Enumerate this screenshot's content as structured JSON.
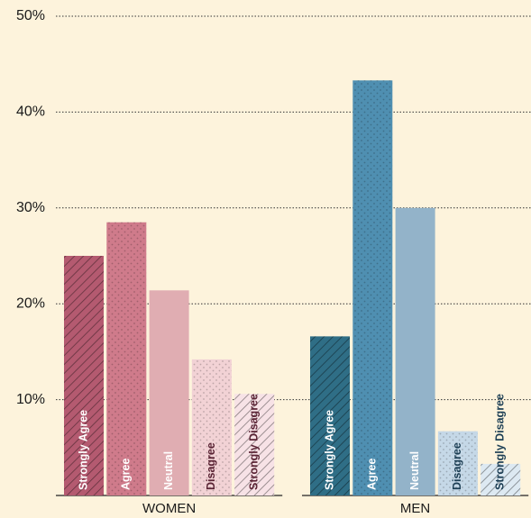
{
  "chart_data": {
    "type": "bar",
    "categories": [
      "WOMEN",
      "MEN"
    ],
    "series": [
      {
        "name": "Strongly Agree",
        "colors": [
          "#b45a70",
          "#2f6e86"
        ],
        "pattern": "hatch",
        "label_colors": [
          "#ffffff",
          "#ffffff"
        ],
        "values": [
          25.0,
          16.6
        ]
      },
      {
        "name": "Agree",
        "colors": [
          "#cf7b8b",
          "#4f8fb1"
        ],
        "pattern": "dots",
        "label_colors": [
          "#ffffff",
          "#ffffff"
        ],
        "values": [
          28.5,
          43.3
        ]
      },
      {
        "name": "Neutral",
        "colors": [
          "#e0adb2",
          "#93b3c9"
        ],
        "pattern": "none",
        "label_colors": [
          "#ffffff",
          "#ffffff"
        ],
        "values": [
          21.4,
          30.0
        ]
      },
      {
        "name": "Disagree",
        "colors": [
          "#f2d2d5",
          "#c5d8e7"
        ],
        "pattern": "dots",
        "label_colors": [
          "#5a2334",
          "#1d3f55"
        ],
        "values": [
          14.2,
          6.7
        ]
      },
      {
        "name": "Strongly Disagree",
        "colors": [
          "#f7e2e6",
          "#dde9f2"
        ],
        "pattern": "hatch",
        "label_colors": [
          "#5a2334",
          "#1d3f55"
        ],
        "values": [
          10.6,
          3.3
        ]
      }
    ],
    "ylim": [
      0,
      50
    ],
    "yticks": [
      {
        "value": 10,
        "label": "10%"
      },
      {
        "value": 20,
        "label": "20%"
      },
      {
        "value": 30,
        "label": "30%"
      },
      {
        "value": 40,
        "label": "40%"
      },
      {
        "value": 50,
        "label": "50%"
      }
    ],
    "grid": true
  }
}
